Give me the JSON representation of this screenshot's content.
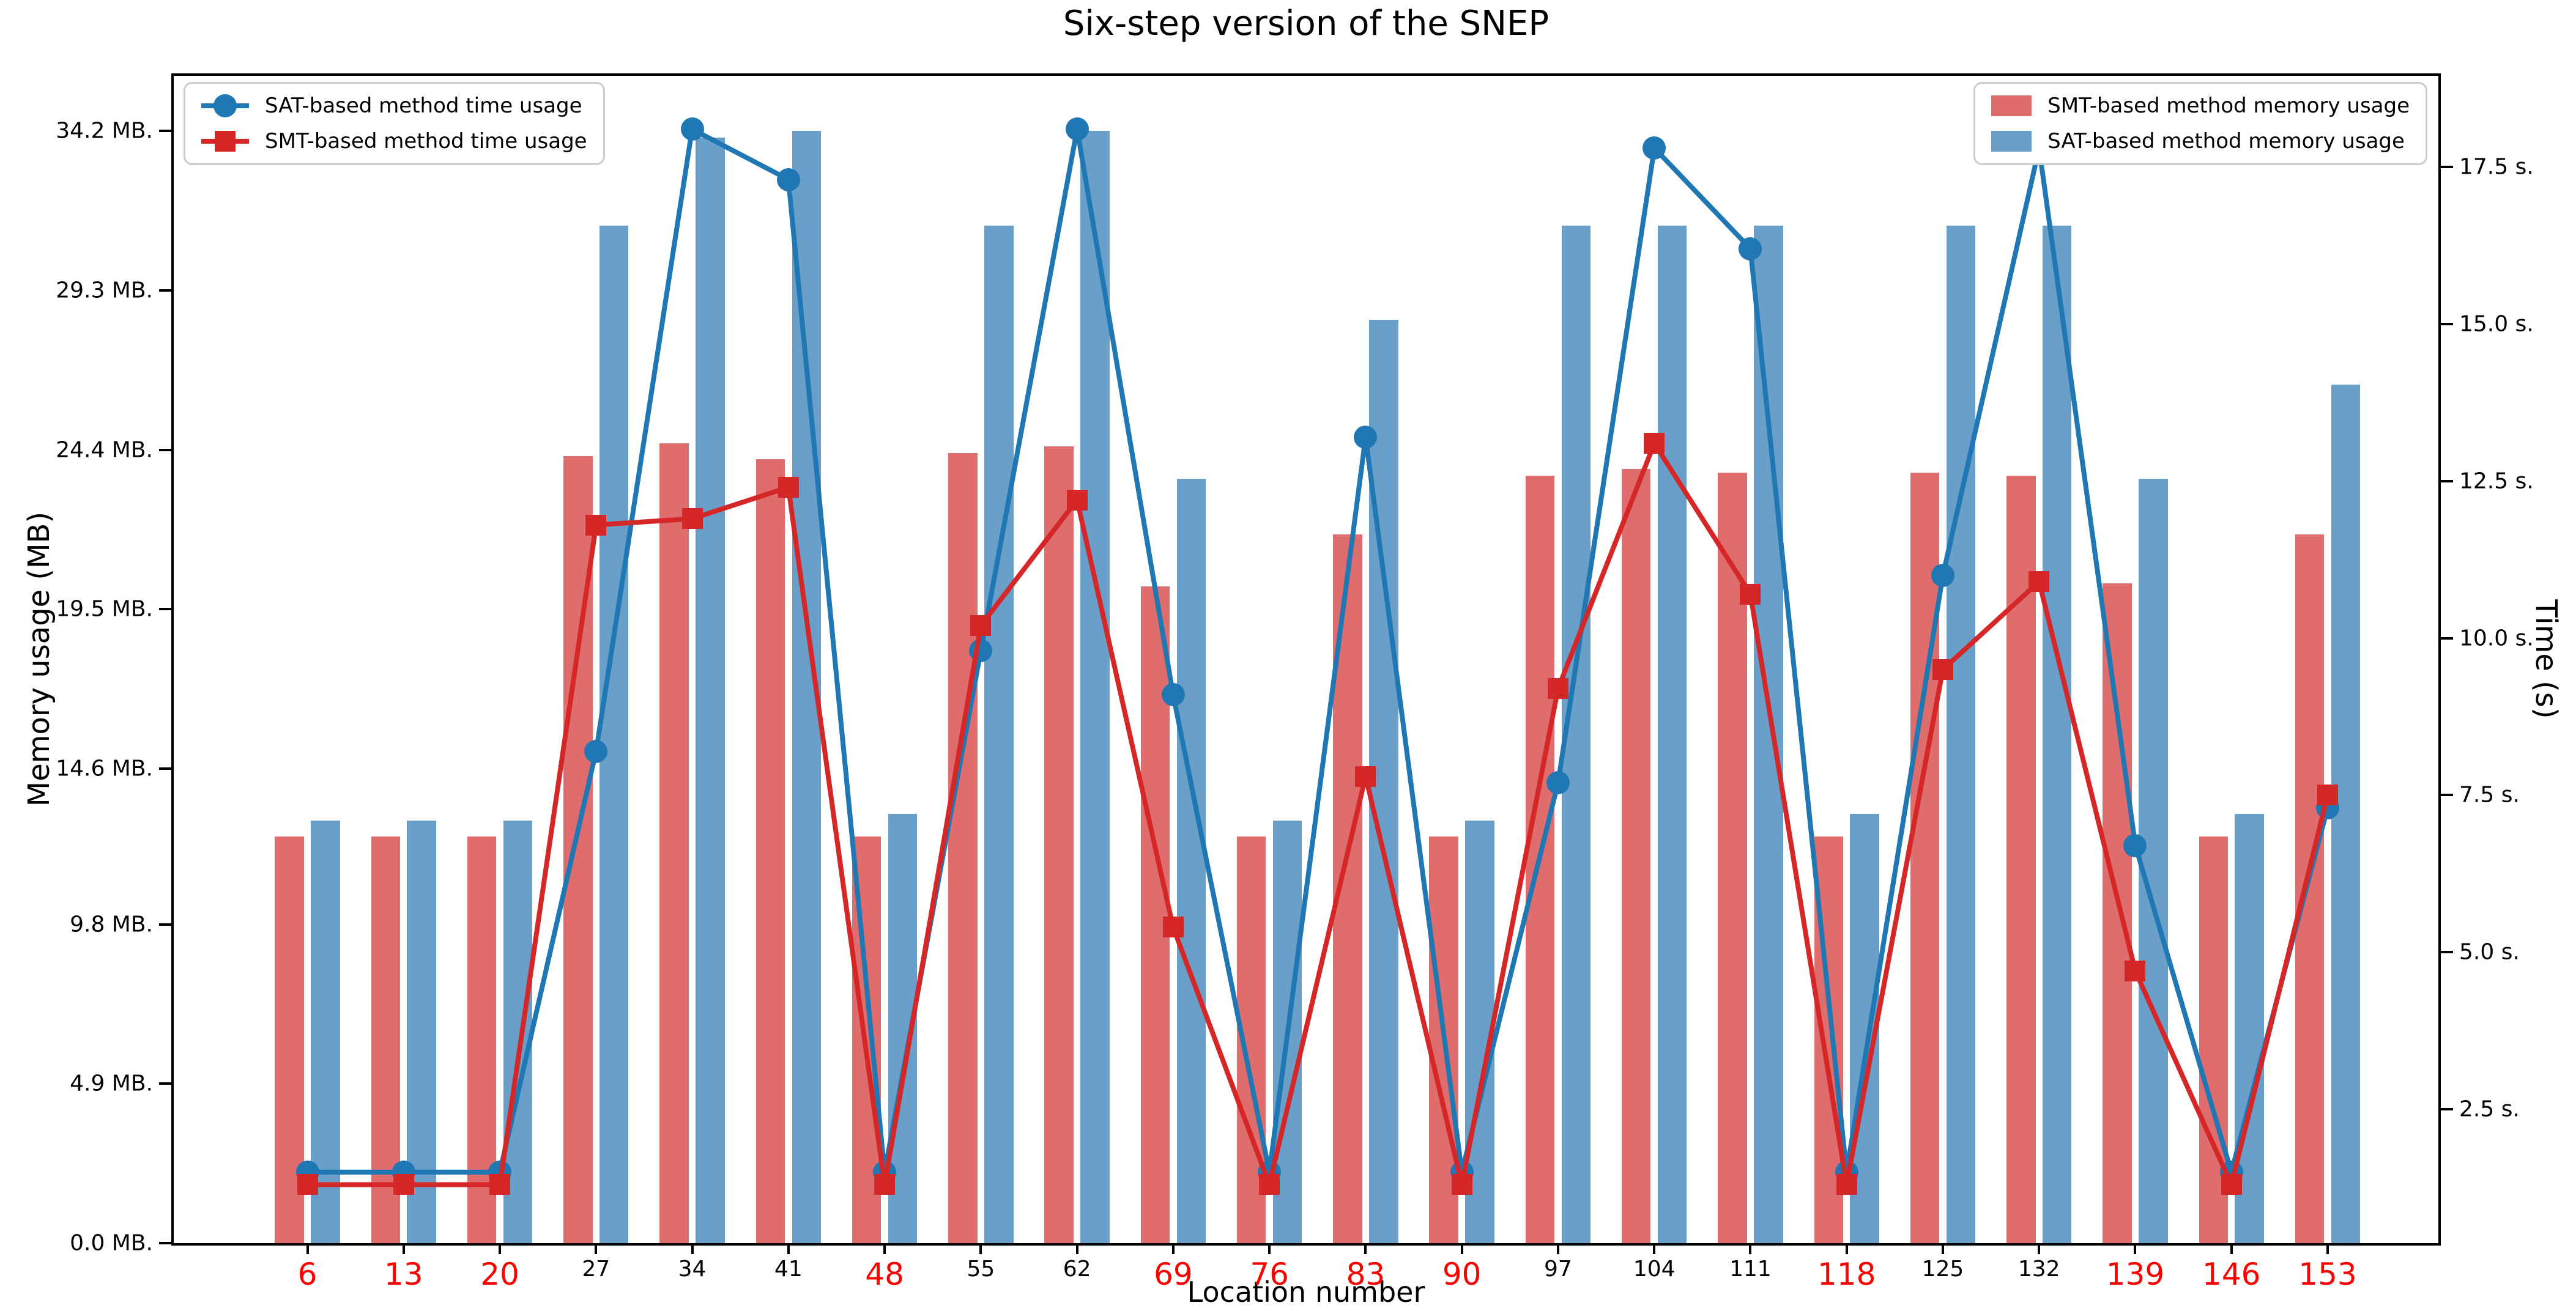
{
  "chart_data": {
    "type": "bar+line",
    "title": "Six-step version of the SNEP",
    "xlabel": "Location number",
    "ylabel_left": "Memory usage (MB)",
    "ylabel_right": "Time (s)",
    "grid": false,
    "legend_left_position": "upper left",
    "legend_right_position": "upper right",
    "ylim_left": [
      0,
      35.9
    ],
    "ylim_right": [
      0.37,
      18.95
    ],
    "x_tick_emphasis_color": "#ff0000",
    "x_tick_normal_color": "#000000",
    "x_ticks": [
      {
        "label": "6",
        "emphasis": true
      },
      {
        "label": "13",
        "emphasis": true
      },
      {
        "label": "20",
        "emphasis": true
      },
      {
        "label": "27",
        "emphasis": false
      },
      {
        "label": "34",
        "emphasis": false
      },
      {
        "label": "41",
        "emphasis": false
      },
      {
        "label": "48",
        "emphasis": true
      },
      {
        "label": "55",
        "emphasis": false
      },
      {
        "label": "62",
        "emphasis": false
      },
      {
        "label": "69",
        "emphasis": true
      },
      {
        "label": "76",
        "emphasis": true
      },
      {
        "label": "83",
        "emphasis": true
      },
      {
        "label": "90",
        "emphasis": true
      },
      {
        "label": "97",
        "emphasis": false
      },
      {
        "label": "104",
        "emphasis": false
      },
      {
        "label": "111",
        "emphasis": false
      },
      {
        "label": "118",
        "emphasis": true
      },
      {
        "label": "125",
        "emphasis": false
      },
      {
        "label": "132",
        "emphasis": false
      },
      {
        "label": "139",
        "emphasis": true
      },
      {
        "label": "146",
        "emphasis": true
      },
      {
        "label": "153",
        "emphasis": true
      }
    ],
    "y_left_ticks": [
      {
        "label": "0.0 MB.",
        "value": 0.0
      },
      {
        "label": "4.9 MB.",
        "value": 4.9
      },
      {
        "label": "9.8 MB.",
        "value": 9.8
      },
      {
        "label": "14.6 MB.",
        "value": 14.6
      },
      {
        "label": "19.5 MB.",
        "value": 19.5
      },
      {
        "label": "24.4 MB.",
        "value": 24.4
      },
      {
        "label": "29.3 MB.",
        "value": 29.3
      },
      {
        "label": "34.2 MB.",
        "value": 34.2
      }
    ],
    "y_right_ticks": [
      {
        "label": "2.5 s.",
        "value": 2.5
      },
      {
        "label": "5.0 s.",
        "value": 5.0
      },
      {
        "label": "7.5 s.",
        "value": 7.5
      },
      {
        "label": "10.0 s.",
        "value": 10.0
      },
      {
        "label": "12.5 s.",
        "value": 12.5
      },
      {
        "label": "15.0 s.",
        "value": 15.0
      },
      {
        "label": "17.5 s.",
        "value": 17.5
      }
    ],
    "series": [
      {
        "name": "SMT-based method memory usage",
        "type": "bar",
        "axis": "left",
        "color": "#e06d6d",
        "values": [
          12.5,
          12.5,
          12.5,
          24.2,
          24.6,
          24.1,
          12.5,
          24.3,
          24.5,
          20.2,
          12.5,
          21.8,
          12.5,
          23.6,
          23.8,
          23.7,
          12.5,
          23.7,
          23.6,
          20.3,
          12.5,
          21.8
        ]
      },
      {
        "name": "SAT-based method memory usage",
        "type": "bar",
        "axis": "left",
        "color": "#6a9fc9",
        "values": [
          13.0,
          13.0,
          13.0,
          31.3,
          34.0,
          34.2,
          13.2,
          31.3,
          34.2,
          23.5,
          13.0,
          28.4,
          13.0,
          31.3,
          31.3,
          31.3,
          13.2,
          31.3,
          31.3,
          23.5,
          13.2,
          26.4
        ]
      },
      {
        "name": "SAT-based method time usage",
        "type": "line",
        "marker": "circle",
        "axis": "right",
        "color": "#1f77b4",
        "values": [
          1.5,
          1.5,
          1.5,
          8.2,
          18.1,
          17.3,
          1.5,
          9.8,
          18.1,
          9.1,
          1.5,
          13.2,
          1.5,
          7.7,
          17.8,
          16.2,
          1.5,
          11.0,
          17.8,
          6.7,
          1.5,
          7.3
        ]
      },
      {
        "name": "SMT-based method time usage",
        "type": "line",
        "marker": "square",
        "axis": "right",
        "color": "#d62728",
        "values": [
          1.3,
          1.3,
          1.3,
          11.8,
          11.9,
          12.4,
          1.3,
          10.2,
          12.2,
          5.4,
          1.3,
          7.8,
          1.3,
          9.2,
          13.1,
          10.7,
          1.3,
          9.5,
          10.9,
          4.7,
          1.3,
          7.5
        ]
      }
    ]
  }
}
